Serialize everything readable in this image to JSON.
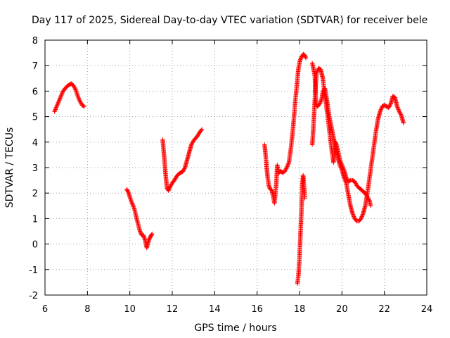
{
  "chart_data": {
    "type": "scatter",
    "title": "Day 117 of 2025, Sidereal Day-to-day VTEC variation (SDTVAR) for receiver bele",
    "xlabel": "GPS time / hours",
    "ylabel": "SDTVAR / TECUs",
    "xlim": [
      6,
      24
    ],
    "ylim": [
      -2,
      8
    ],
    "xticks": [
      6,
      8,
      10,
      12,
      14,
      16,
      18,
      20,
      22,
      24
    ],
    "yticks": [
      -2,
      -1,
      0,
      1,
      2,
      3,
      4,
      5,
      6,
      7,
      8
    ],
    "grid": true,
    "marker": "+",
    "color": "#ff0000",
    "segments": [
      [
        [
          6.45,
          5.2
        ],
        [
          6.55,
          5.4
        ],
        [
          6.65,
          5.6
        ],
        [
          6.75,
          5.8
        ],
        [
          6.85,
          6.0
        ],
        [
          6.95,
          6.1
        ],
        [
          7.05,
          6.2
        ],
        [
          7.15,
          6.25
        ],
        [
          7.25,
          6.3
        ],
        [
          7.35,
          6.2
        ],
        [
          7.45,
          6.05
        ],
        [
          7.55,
          5.8
        ],
        [
          7.65,
          5.6
        ],
        [
          7.75,
          5.45
        ],
        [
          7.85,
          5.4
        ]
      ],
      [
        [
          9.85,
          2.15
        ],
        [
          9.92,
          2.05
        ],
        [
          10.0,
          1.85
        ],
        [
          10.08,
          1.65
        ],
        [
          10.16,
          1.5
        ],
        [
          10.24,
          1.3
        ],
        [
          10.32,
          1.0
        ],
        [
          10.4,
          0.75
        ],
        [
          10.48,
          0.5
        ],
        [
          10.56,
          0.35
        ],
        [
          10.64,
          0.35
        ],
        [
          10.7,
          0.2
        ],
        [
          10.76,
          0.0
        ],
        [
          10.8,
          -0.15
        ],
        [
          10.86,
          0.05
        ],
        [
          10.92,
          0.2
        ],
        [
          10.98,
          0.3
        ],
        [
          11.05,
          0.4
        ]
      ],
      [
        [
          11.55,
          4.1
        ],
        [
          11.6,
          3.6
        ],
        [
          11.65,
          3.1
        ],
        [
          11.7,
          2.6
        ],
        [
          11.75,
          2.2
        ],
        [
          11.82,
          2.1
        ],
        [
          11.9,
          2.25
        ],
        [
          12.0,
          2.4
        ],
        [
          12.1,
          2.5
        ],
        [
          12.2,
          2.65
        ],
        [
          12.3,
          2.75
        ],
        [
          12.4,
          2.8
        ],
        [
          12.5,
          2.85
        ],
        [
          12.6,
          3.0
        ],
        [
          12.7,
          3.3
        ],
        [
          12.8,
          3.6
        ],
        [
          12.9,
          3.9
        ],
        [
          13.0,
          4.05
        ],
        [
          13.1,
          4.15
        ],
        [
          13.2,
          4.25
        ],
        [
          13.3,
          4.4
        ],
        [
          13.4,
          4.5
        ]
      ],
      [
        [
          16.35,
          3.9
        ],
        [
          16.4,
          3.5
        ],
        [
          16.45,
          3.0
        ],
        [
          16.5,
          2.6
        ],
        [
          16.55,
          2.3
        ],
        [
          16.62,
          2.15
        ],
        [
          16.7,
          2.1
        ],
        [
          16.75,
          1.9
        ],
        [
          16.82,
          1.6
        ],
        [
          16.9,
          2.3
        ],
        [
          16.95,
          3.1
        ],
        [
          17.02,
          2.8
        ],
        [
          17.12,
          2.85
        ],
        [
          17.22,
          2.8
        ],
        [
          17.3,
          2.85
        ],
        [
          17.4,
          3.0
        ],
        [
          17.5,
          3.2
        ],
        [
          17.6,
          3.8
        ],
        [
          17.7,
          4.6
        ],
        [
          17.8,
          5.6
        ],
        [
          17.88,
          6.3
        ],
        [
          17.95,
          6.9
        ],
        [
          18.02,
          7.2
        ],
        [
          18.1,
          7.35
        ],
        [
          18.18,
          7.45
        ],
        [
          18.25,
          7.4
        ],
        [
          18.3,
          7.3
        ]
      ],
      [
        [
          17.9,
          -1.55
        ],
        [
          17.95,
          -1.2
        ],
        [
          18.0,
          -0.5
        ],
        [
          18.05,
          0.5
        ],
        [
          18.1,
          1.5
        ],
        [
          18.13,
          2.3
        ],
        [
          18.17,
          2.7
        ],
        [
          18.2,
          2.4
        ],
        [
          18.25,
          1.8
        ]
      ],
      [
        [
          18.6,
          7.1
        ],
        [
          18.65,
          6.9
        ],
        [
          18.72,
          6.6
        ],
        [
          18.78,
          5.5
        ],
        [
          18.85,
          5.4
        ],
        [
          18.95,
          5.5
        ],
        [
          19.05,
          5.7
        ],
        [
          19.1,
          6.0
        ],
        [
          19.2,
          6.1
        ],
        [
          19.3,
          5.6
        ],
        [
          19.4,
          5.0
        ],
        [
          19.5,
          4.6
        ],
        [
          19.6,
          4.2
        ],
        [
          19.7,
          3.8
        ],
        [
          19.8,
          3.4
        ],
        [
          19.9,
          3.1
        ],
        [
          20.0,
          2.9
        ],
        [
          20.1,
          2.6
        ],
        [
          20.2,
          2.4
        ],
        [
          20.3,
          1.95
        ],
        [
          20.4,
          1.5
        ],
        [
          20.5,
          1.2
        ],
        [
          20.6,
          1.0
        ],
        [
          20.7,
          0.9
        ],
        [
          20.8,
          0.9
        ],
        [
          20.9,
          1.0
        ],
        [
          21.0,
          1.2
        ],
        [
          21.1,
          1.5
        ],
        [
          21.2,
          2.0
        ],
        [
          21.3,
          2.6
        ],
        [
          21.4,
          3.2
        ],
        [
          21.5,
          3.8
        ],
        [
          21.6,
          4.4
        ],
        [
          21.7,
          4.9
        ],
        [
          21.8,
          5.2
        ],
        [
          21.9,
          5.4
        ],
        [
          22.0,
          5.45
        ],
        [
          22.1,
          5.4
        ],
        [
          22.2,
          5.35
        ],
        [
          22.3,
          5.5
        ],
        [
          22.4,
          5.8
        ],
        [
          22.5,
          5.75
        ],
        [
          22.6,
          5.4
        ],
        [
          22.7,
          5.2
        ],
        [
          22.8,
          5.05
        ],
        [
          22.9,
          4.75
        ]
      ],
      [
        [
          18.6,
          3.9
        ],
        [
          18.65,
          4.5
        ],
        [
          18.7,
          5.3
        ],
        [
          18.75,
          6.1
        ],
        [
          18.8,
          6.7
        ],
        [
          18.9,
          6.9
        ],
        [
          19.0,
          6.85
        ],
        [
          19.1,
          6.5
        ],
        [
          19.2,
          5.8
        ],
        [
          19.3,
          5.2
        ],
        [
          19.4,
          4.5
        ],
        [
          19.5,
          3.8
        ],
        [
          19.6,
          3.2
        ],
        [
          19.7,
          4.0
        ],
        [
          19.8,
          3.7
        ],
        [
          19.9,
          3.3
        ],
        [
          20.0,
          3.1
        ],
        [
          20.1,
          2.9
        ],
        [
          20.2,
          2.6
        ],
        [
          20.3,
          2.45
        ],
        [
          20.4,
          2.5
        ],
        [
          20.5,
          2.5
        ],
        [
          20.6,
          2.45
        ],
        [
          20.7,
          2.3
        ],
        [
          20.8,
          2.2
        ],
        [
          20.9,
          2.15
        ],
        [
          21.0,
          2.05
        ],
        [
          21.1,
          2.0
        ],
        [
          21.2,
          1.85
        ],
        [
          21.3,
          1.7
        ],
        [
          21.35,
          1.5
        ]
      ]
    ]
  }
}
